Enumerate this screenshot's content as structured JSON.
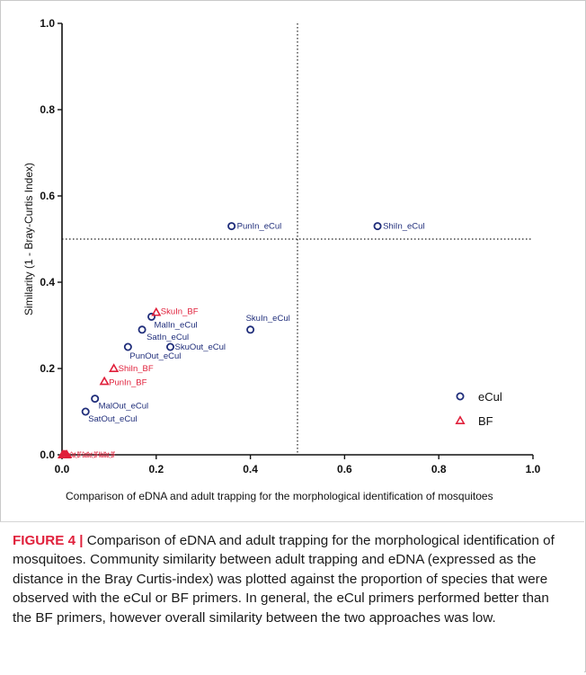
{
  "chart_data": {
    "type": "scatter",
    "xlabel": "Comparison of eDNA and adult trapping for the morphological identification of mosquitoes",
    "ylabel": "Similarity (1 - Bray-Curtis Index)",
    "xlim": [
      0.0,
      1.0
    ],
    "ylim": [
      0.0,
      1.0
    ],
    "x_ticks": [
      "0.0",
      "0.2",
      "0.4",
      "0.6",
      "0.8",
      "1.0"
    ],
    "y_ticks": [
      "0.0",
      "0.2",
      "0.4",
      "0.6",
      "0.8",
      "1.0"
    ],
    "reference_lines": {
      "x": 0.5,
      "y": 0.5,
      "style": "dotted"
    },
    "legend_position": "bottom-right",
    "series": [
      {
        "name": "eCul",
        "marker": "circle",
        "color": "#1f2d7a",
        "points": [
          {
            "x": 0.36,
            "y": 0.53,
            "label": "PunIn_eCul"
          },
          {
            "x": 0.67,
            "y": 0.53,
            "label": "ShiIn_eCul"
          },
          {
            "x": 0.4,
            "y": 0.29,
            "label": "SkuIn_eCul"
          },
          {
            "x": 0.19,
            "y": 0.32,
            "label": "MalIn_eCul"
          },
          {
            "x": 0.17,
            "y": 0.29,
            "label": "SatIn_eCul"
          },
          {
            "x": 0.23,
            "y": 0.25,
            "label": "SkuOut_eCul"
          },
          {
            "x": 0.14,
            "y": 0.25,
            "label": "PunOut_eCul"
          },
          {
            "x": 0.07,
            "y": 0.13,
            "label": "MalOut_eCul"
          },
          {
            "x": 0.05,
            "y": 0.1,
            "label": "SatOut_eCul"
          }
        ]
      },
      {
        "name": "BF",
        "marker": "triangle",
        "color": "#e0203b",
        "points": [
          {
            "x": 0.2,
            "y": 0.33,
            "label": "SkuIn_BF"
          },
          {
            "x": 0.11,
            "y": 0.2,
            "label": "ShiIn_BF"
          },
          {
            "x": 0.09,
            "y": 0.17,
            "label": "PunIn_BF"
          },
          {
            "x": 0.0,
            "y": 0.0,
            "label": ""
          },
          {
            "x": 0.0,
            "y": 0.0,
            "label": ""
          },
          {
            "x": 0.0,
            "y": 0.0,
            "label": ""
          },
          {
            "x": 0.0,
            "y": 0.0,
            "label": ""
          },
          {
            "x": 0.0,
            "y": 0.0,
            "label": ""
          }
        ]
      }
    ]
  },
  "caption": {
    "figure_label": "FIGURE 4 |",
    "text": " Comparison of eDNA and adult trapping for the morphological identification of mosquitoes. Community similarity between adult trapping and eDNA (expressed as the distance in the Bray Curtis-index) was plotted against the proportion of species that were observed with the eCul or BF primers. In general, the eCul primers performed better than the BF primers, however overall similarity between the two approaches was low."
  },
  "overlap_labels": "SkuOut_BF SatOut_BF MalOut_BF"
}
